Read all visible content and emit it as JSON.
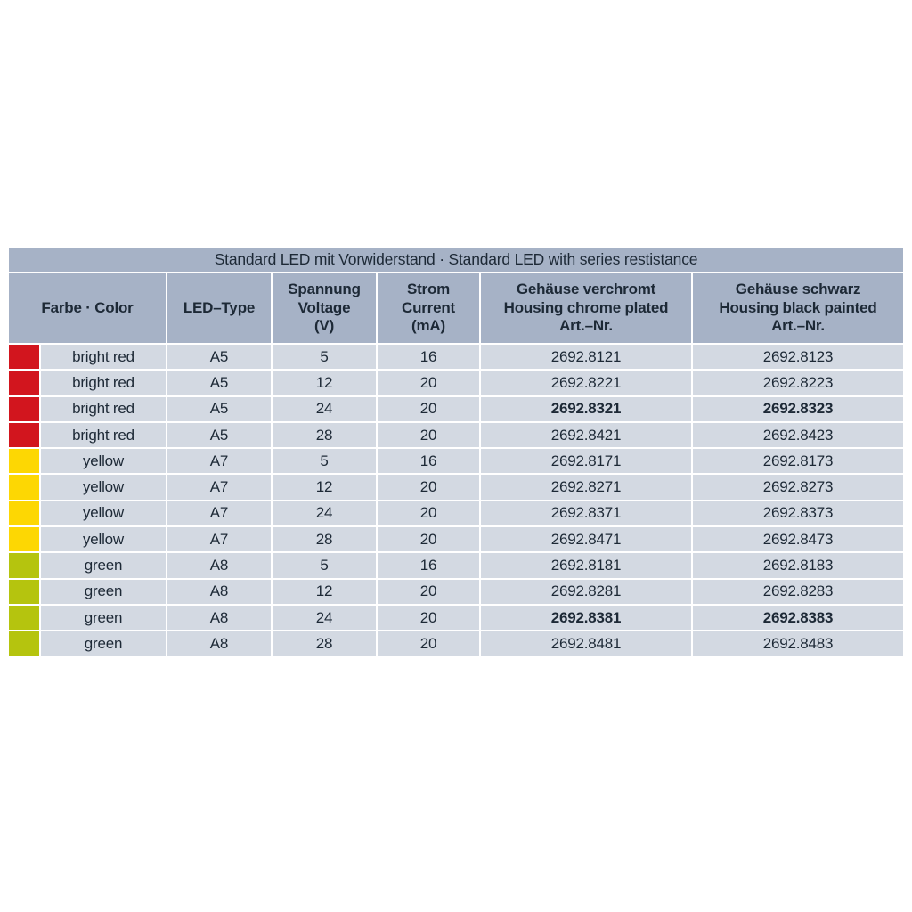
{
  "table": {
    "title": "Standard LED mit Vorwiderstand · Standard LED with series restistance",
    "headers": {
      "color": "Farbe · Color",
      "led_type": "LED–Type",
      "voltage": "Spannung\nVoltage\n(V)",
      "current": "Strom\nCurrent\n(mA)",
      "art_chrome": "Gehäuse verchromt\nHousing chrome plated\nArt.–Nr.",
      "art_black": "Gehäuse schwarz\nHousing black painted\nArt.–Nr."
    },
    "swatch_colors": {
      "bright_red": "#d2151e",
      "yellow": "#fdd703",
      "green": "#b5c40e"
    },
    "style_colors": {
      "header_bg": "#a6b2c6",
      "row_bg": "#d3d9e2",
      "text": "#1d2936"
    },
    "rows": [
      {
        "swatch": "bright_red",
        "color": "bright red",
        "led_type": "A5",
        "voltage": "5",
        "current": "16",
        "art_chrome": "2692.8121",
        "art_black": "2692.8123",
        "bold_art": false
      },
      {
        "swatch": "bright_red",
        "color": "bright red",
        "led_type": "A5",
        "voltage": "12",
        "current": "20",
        "art_chrome": "2692.8221",
        "art_black": "2692.8223",
        "bold_art": false
      },
      {
        "swatch": "bright_red",
        "color": "bright red",
        "led_type": "A5",
        "voltage": "24",
        "current": "20",
        "art_chrome": "2692.8321",
        "art_black": "2692.8323",
        "bold_art": true
      },
      {
        "swatch": "bright_red",
        "color": "bright red",
        "led_type": "A5",
        "voltage": "28",
        "current": "20",
        "art_chrome": "2692.8421",
        "art_black": "2692.8423",
        "bold_art": false
      },
      {
        "swatch": "yellow",
        "color": "yellow",
        "led_type": "A7",
        "voltage": "5",
        "current": "16",
        "art_chrome": "2692.8171",
        "art_black": "2692.8173",
        "bold_art": false
      },
      {
        "swatch": "yellow",
        "color": "yellow",
        "led_type": "A7",
        "voltage": "12",
        "current": "20",
        "art_chrome": "2692.8271",
        "art_black": "2692.8273",
        "bold_art": false
      },
      {
        "swatch": "yellow",
        "color": "yellow",
        "led_type": "A7",
        "voltage": "24",
        "current": "20",
        "art_chrome": "2692.8371",
        "art_black": "2692.8373",
        "bold_art": false
      },
      {
        "swatch": "yellow",
        "color": "yellow",
        "led_type": "A7",
        "voltage": "28",
        "current": "20",
        "art_chrome": "2692.8471",
        "art_black": "2692.8473",
        "bold_art": false
      },
      {
        "swatch": "green",
        "color": "green",
        "led_type": "A8",
        "voltage": "5",
        "current": "16",
        "art_chrome": "2692.8181",
        "art_black": "2692.8183",
        "bold_art": false
      },
      {
        "swatch": "green",
        "color": "green",
        "led_type": "A8",
        "voltage": "12",
        "current": "20",
        "art_chrome": "2692.8281",
        "art_black": "2692.8283",
        "bold_art": false
      },
      {
        "swatch": "green",
        "color": "green",
        "led_type": "A8",
        "voltage": "24",
        "current": "20",
        "art_chrome": "2692.8381",
        "art_black": "2692.8383",
        "bold_art": true
      },
      {
        "swatch": "green",
        "color": "green",
        "led_type": "A8",
        "voltage": "28",
        "current": "20",
        "art_chrome": "2692.8481",
        "art_black": "2692.8483",
        "bold_art": false
      }
    ]
  }
}
